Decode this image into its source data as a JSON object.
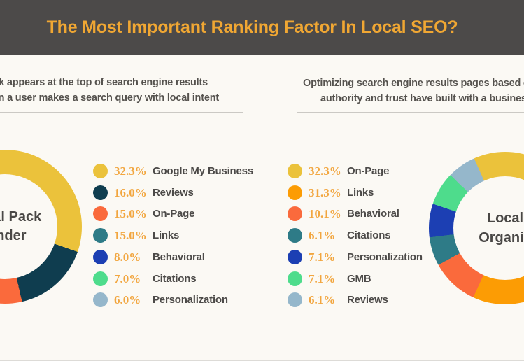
{
  "header": {
    "title": "The Most Important Ranking Factor In Local SEO?",
    "bg_color": "#4C4A49",
    "title_color": "#F0A733"
  },
  "intro": {
    "left": {
      "line1": "The Local Pack appears at the top of search engine results",
      "line2": "pages (SERPs) when a user makes a search query with local intent"
    },
    "right": {
      "line1": "Optimizing search engine results pages based on the expertise,",
      "line2": "authority and trust have built with a business's website"
    }
  },
  "colors": {
    "background": "#FBF9F4",
    "percent_accent": "#F2A63F",
    "label_text": "#4C4A48",
    "divider": "#CBC9C4"
  },
  "chart_data": [
    {
      "type": "pie",
      "style": "donut",
      "title": "Local Pack Finder",
      "center_label": [
        "Local Pack",
        "Finder"
      ],
      "legend_position": "right",
      "start_angle_deg": -8,
      "segments": [
        {
          "label": "Google My Business",
          "value": 32.3,
          "color": "#EBC23B"
        },
        {
          "label": "Reviews",
          "value": 16.0,
          "color": "#0F3D4F"
        },
        {
          "label": "On-Page",
          "value": 15.0,
          "color": "#FA6A3C"
        },
        {
          "label": "Links",
          "value": 15.0,
          "color": "#2E7B87"
        },
        {
          "label": "Behavioral",
          "value": 8.0,
          "color": "#1C3FB3"
        },
        {
          "label": "Citations",
          "value": 7.0,
          "color": "#4EDC8C"
        },
        {
          "label": "Personalization",
          "value": 6.0,
          "color": "#95B7CB"
        }
      ]
    },
    {
      "type": "pie",
      "style": "donut",
      "title": "Local Organic",
      "center_label": [
        "Local",
        "Organic"
      ],
      "legend_position": "left",
      "start_angle_deg": -24,
      "segments": [
        {
          "label": "On-Page",
          "value": 32.3,
          "color": "#EBC23B"
        },
        {
          "label": "Links",
          "value": 31.3,
          "color": "#FC9C04"
        },
        {
          "label": "Behavioral",
          "value": 10.1,
          "color": "#FA6A3C"
        },
        {
          "label": "Citations",
          "value": 6.1,
          "color": "#2E7B87"
        },
        {
          "label": "Personalization",
          "value": 7.1,
          "color": "#1C3FB3"
        },
        {
          "label": "GMB",
          "value": 7.1,
          "color": "#4EDC8C"
        },
        {
          "label": "Reviews",
          "value": 6.1,
          "color": "#95B7CB"
        }
      ]
    }
  ]
}
